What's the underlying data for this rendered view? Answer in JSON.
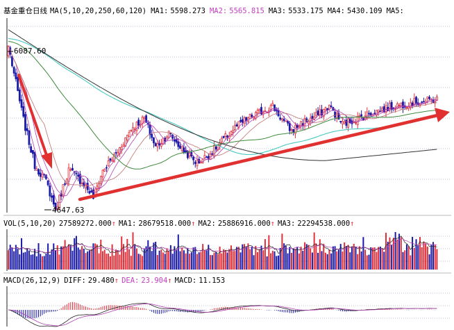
{
  "main_panel": {
    "title": "基金重仓日线",
    "ma_params": "MA(5,10,20,250,60,120)",
    "ma1_label": "MA1:",
    "ma1_value": "5598.273",
    "ma2_label": "MA2:",
    "ma2_value": "5565.815",
    "ma3_label": "MA3:",
    "ma3_value": "5533.175",
    "ma4_label": "MA4:",
    "ma4_value": "5430.109",
    "ma5_label": "MA5:",
    "high_label": "6087.60",
    "low_label": "4647.63"
  },
  "volume_panel": {
    "params": "VOL(5,10,20)",
    "vol_value": "27589272.000",
    "ma1_label": "MA1:",
    "ma1_value": "28679518.000",
    "ma2_label": "MA2:",
    "ma2_value": "25886916.000",
    "ma3_label": "MA3:",
    "ma3_value": "22294538.000"
  },
  "macd_panel": {
    "params": "MACD(26,12,9)",
    "diff_label": "DIFF:",
    "diff_value": "29.480",
    "dea_label": "DEA:",
    "dea_value": "23.904",
    "macd_label": "MACD:",
    "macd_value": "11.153"
  },
  "colors": {
    "up": "#e0303a",
    "down": "#1a1aa8",
    "ma_long": "#333333",
    "ma_cyan": "#46c8c0",
    "ma_green": "#3d8a3d",
    "ma_purple": "#b040b0",
    "arrow": "#e03030",
    "grid": "#7a8fb0"
  },
  "chart_data": {
    "type": "candlestick",
    "y_range": [
      4647.63,
      6087.6
    ],
    "annotations": [
      "6087.60",
      "4647.63"
    ],
    "close_path": [
      [
        0,
        6087.6
      ],
      [
        8,
        5440
      ],
      [
        14,
        5040
      ],
      [
        20,
        4900
      ],
      [
        25,
        4647.63
      ],
      [
        32,
        5000
      ],
      [
        40,
        4880
      ],
      [
        45,
        4760
      ],
      [
        50,
        4990
      ],
      [
        58,
        5160
      ],
      [
        65,
        5360
      ],
      [
        72,
        5450
      ],
      [
        78,
        5200
      ],
      [
        85,
        5320
      ],
      [
        92,
        5180
      ],
      [
        100,
        5060
      ],
      [
        106,
        5130
      ],
      [
        112,
        5230
      ],
      [
        120,
        5370
      ],
      [
        128,
        5460
      ],
      [
        135,
        5520
      ],
      [
        140,
        5560
      ],
      [
        145,
        5440
      ],
      [
        150,
        5340
      ],
      [
        155,
        5410
      ],
      [
        162,
        5460
      ],
      [
        170,
        5560
      ],
      [
        177,
        5400
      ],
      [
        185,
        5450
      ],
      [
        192,
        5500
      ],
      [
        200,
        5540
      ],
      [
        207,
        5570
      ],
      [
        214,
        5590
      ],
      [
        220,
        5600
      ],
      [
        227,
        5620
      ]
    ]
  }
}
